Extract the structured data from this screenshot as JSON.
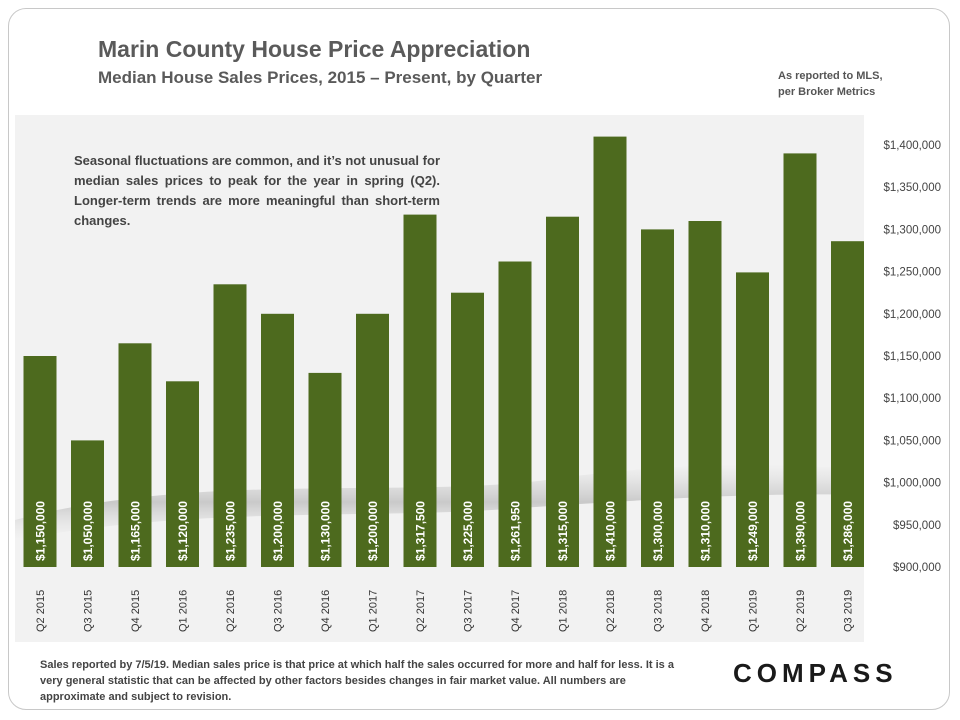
{
  "header": {
    "title": "Marin County House Price Appreciation",
    "subtitle": "Median House Sales Prices, 2015 – Present, by Quarter",
    "source_line1": "As reported to MLS,",
    "source_line2": "per Broker Metrics"
  },
  "annotation": "Seasonal fluctuations are common, and it’s not unusual for median sales prices to peak for the year in spring (Q2). Longer-term trends are more meaningful than short-term changes.",
  "footnote": "Sales reported by 7/5/19. Median sales price is that price at which half the sales occurred for more and half for less. It is a very general statistic that can be affected by other factors besides changes in fair market value. All numbers are approximate and subject to revision.",
  "logo": "COMPASS",
  "colors": {
    "bar": "#4d6a1e",
    "plot_bg": "#f2f2f2",
    "text": "#5a5a5a"
  },
  "chart_data": {
    "type": "bar",
    "title": "Marin County House Price Appreciation",
    "subtitle": "Median House Sales Prices, 2015 – Present, by Quarter",
    "categories": [
      "Q2 2015",
      "Q3 2015",
      "Q4 2015",
      "Q1 2016",
      "Q2 2016",
      "Q3 2016",
      "Q4 2016",
      "Q1 2017",
      "Q2 2017",
      "Q3 2017",
      "Q4 2017",
      "Q1 2018",
      "Q2 2018",
      "Q3 2018",
      "Q4 2018",
      "Q1 2019",
      "Q2 2019",
      "Q3 2019"
    ],
    "values": [
      1150000,
      1050000,
      1165000,
      1120000,
      1235000,
      1200000,
      1130000,
      1200000,
      1317500,
      1225000,
      1261950,
      1315000,
      1410000,
      1300000,
      1310000,
      1249000,
      1390000,
      1286000
    ],
    "data_labels": [
      "$1,150,000",
      "$1,050,000",
      "$1,165,000",
      "$1,120,000",
      "$1,235,000",
      "$1,200,000",
      "$1,130,000",
      "$1,200,000",
      "$1,317,500",
      "$1,225,000",
      "$1,261,950",
      "$1,315,000",
      "$1,410,000",
      "$1,300,000",
      "$1,310,000",
      "$1,249,000",
      "$1,390,000",
      "$1,286,000"
    ],
    "ylim": [
      900000,
      1400000
    ],
    "yticks": [
      900000,
      950000,
      1000000,
      1050000,
      1100000,
      1150000,
      1200000,
      1250000,
      1300000,
      1350000,
      1400000
    ],
    "ytick_labels": [
      "$900,000",
      "$950,000",
      "$1,000,000",
      "$1,050,000",
      "$1,100,000",
      "$1,150,000",
      "$1,200,000",
      "$1,250,000",
      "$1,300,000",
      "$1,350,000",
      "$1,400,000"
    ],
    "y_axis_position": "right",
    "grid": false,
    "legend": "none"
  }
}
